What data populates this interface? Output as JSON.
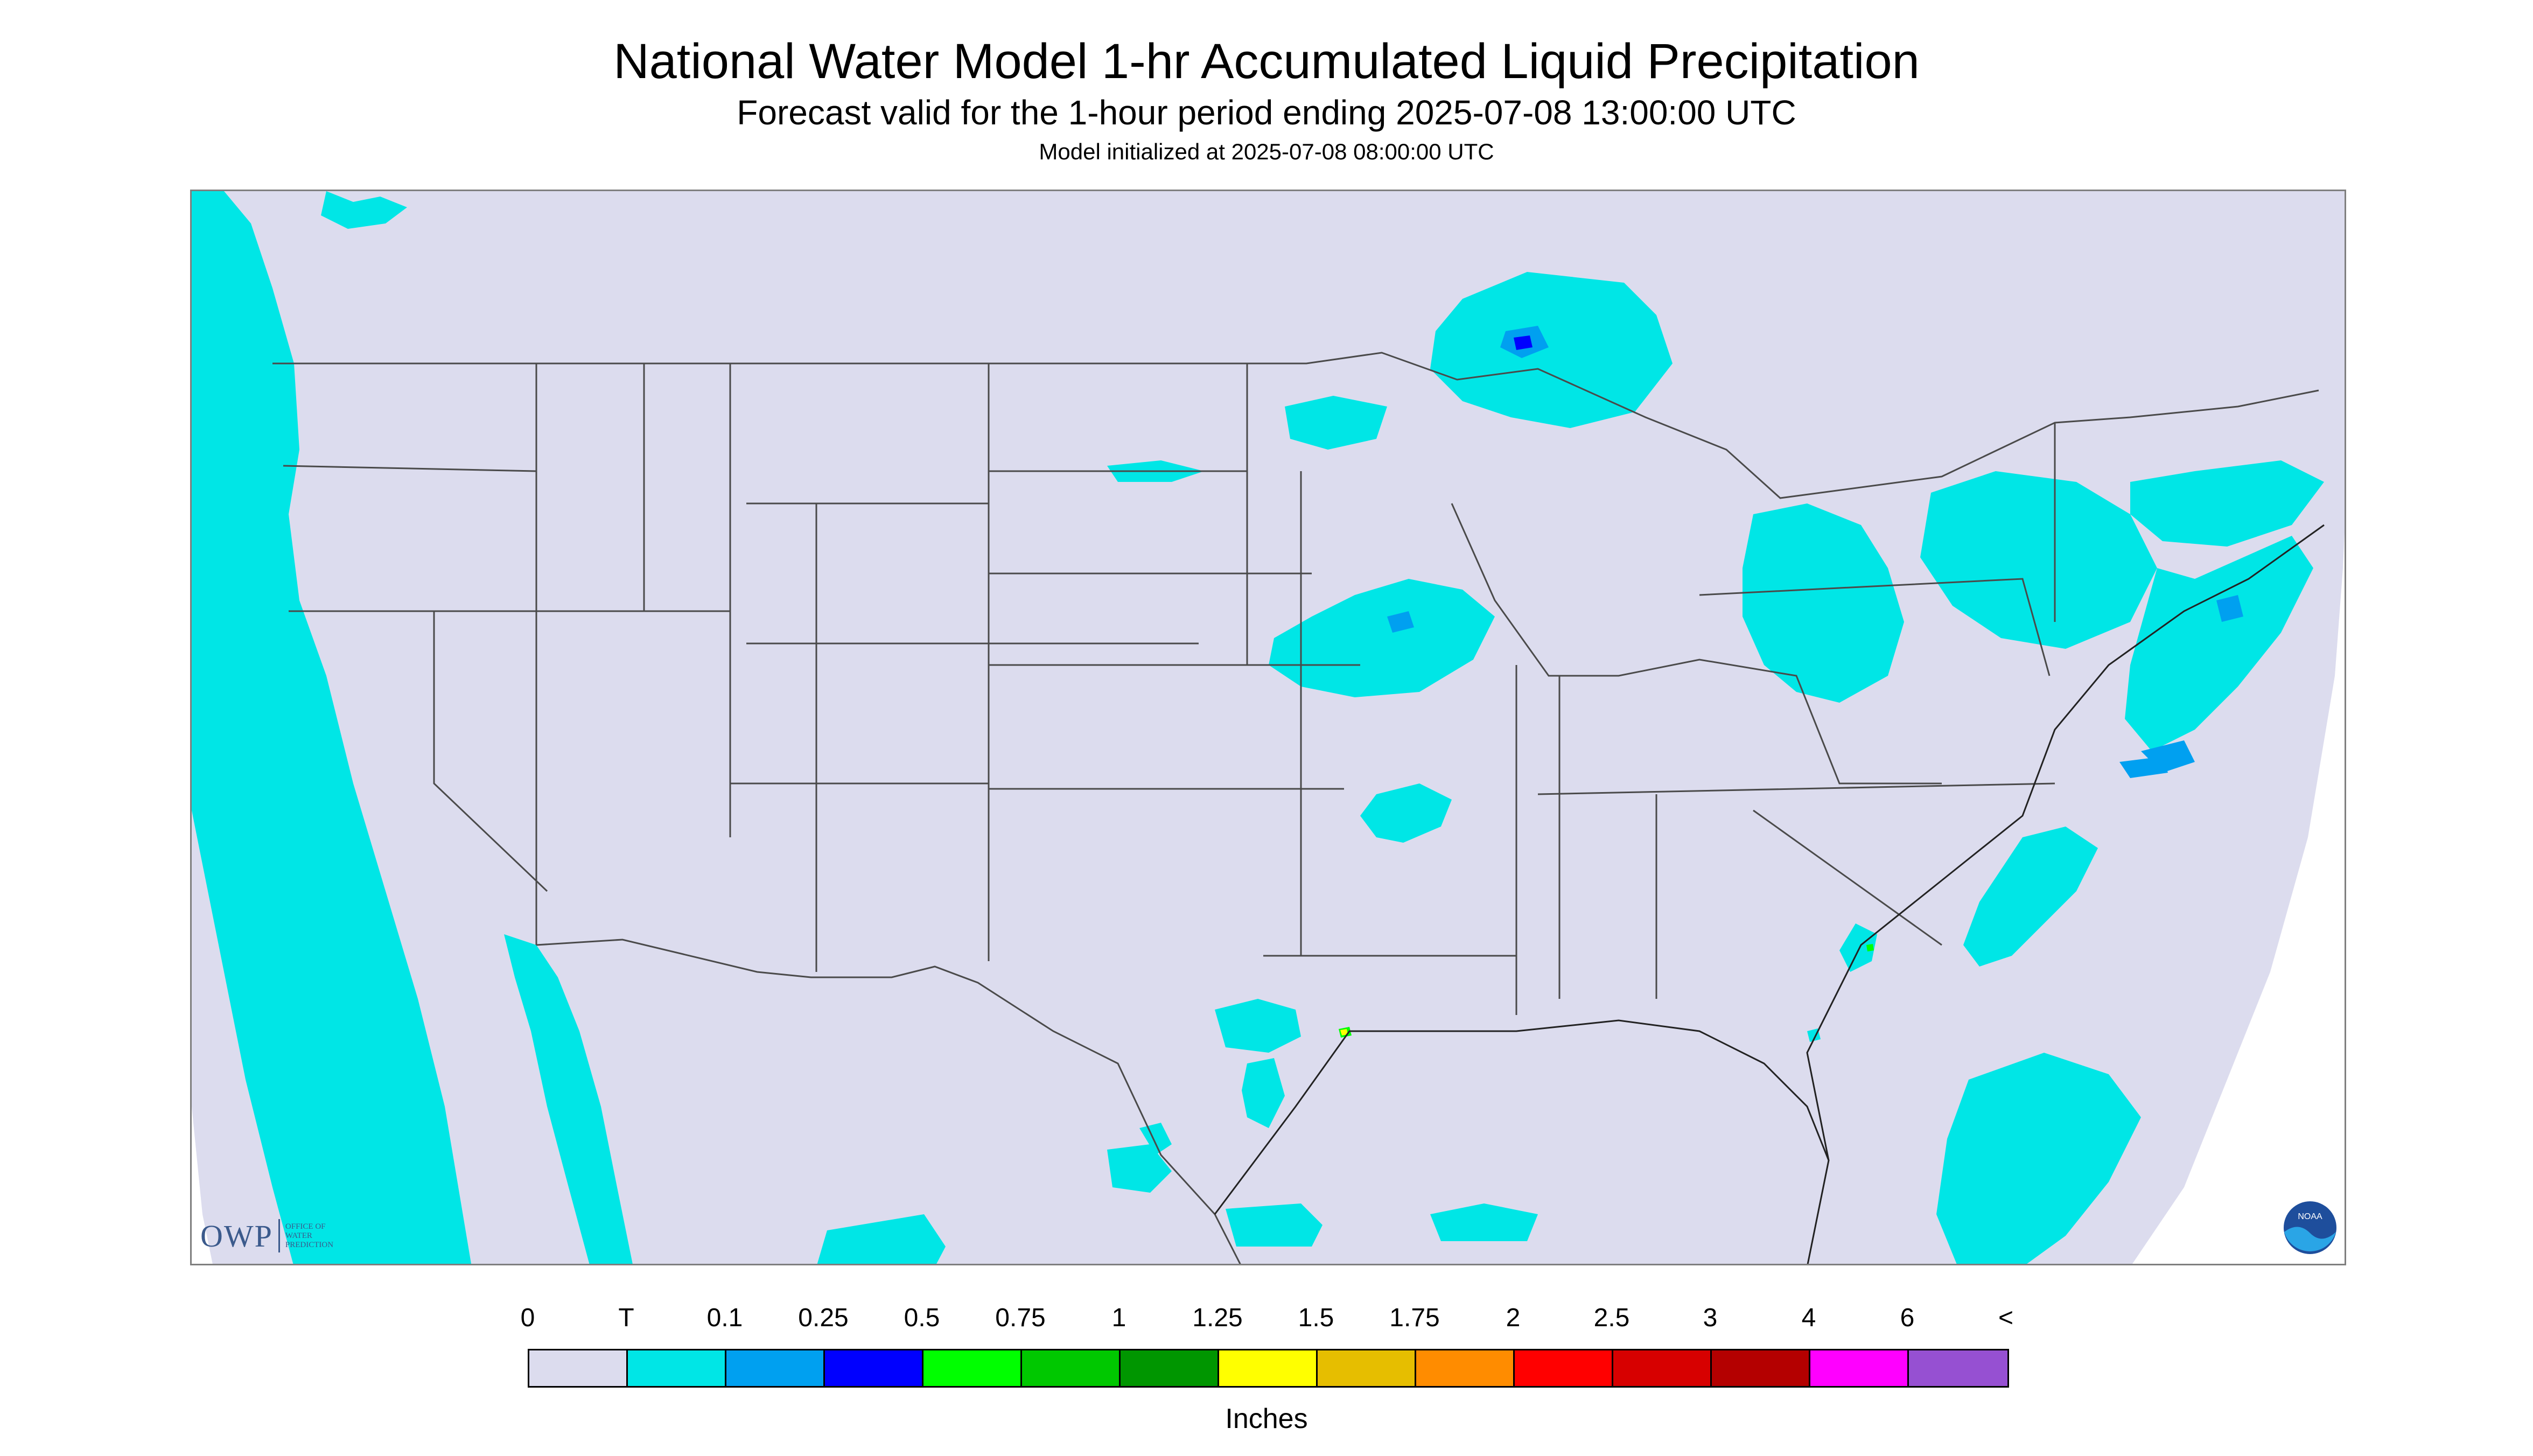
{
  "header": {
    "title": "National Water Model 1-hr Accumulated Liquid Precipitation",
    "subtitle": "Forecast valid for the 1-hour period ending 2025-07-08 13:00:00 UTC",
    "init": "Model initialized at 2025-07-08 08:00:00 UTC"
  },
  "map": {
    "region": "CONUS",
    "background_color": "#dcdcee",
    "outside_domain_color": "#ffffff",
    "boundary_color": "#4a4a4a"
  },
  "logos": {
    "owp": {
      "mark": "OWP",
      "text": [
        "OFFICE OF",
        "WATER",
        "PREDICTION"
      ]
    },
    "noaa": {
      "text": "NOAA"
    }
  },
  "legend": {
    "ticks": [
      "0",
      "T",
      "0.1",
      "0.25",
      "0.5",
      "0.75",
      "1",
      "1.25",
      "1.5",
      "1.75",
      "2",
      "2.5",
      "3",
      "4",
      "6",
      "<"
    ],
    "colors": [
      "#dcdcee",
      "#00e6e6",
      "#00a0f0",
      "#0000ff",
      "#00ff00",
      "#00c800",
      "#009600",
      "#ffff00",
      "#e6be00",
      "#ff8c00",
      "#ff0000",
      "#d70000",
      "#b40000",
      "#ff00ff",
      "#9650d2"
    ],
    "units": "Inches"
  }
}
